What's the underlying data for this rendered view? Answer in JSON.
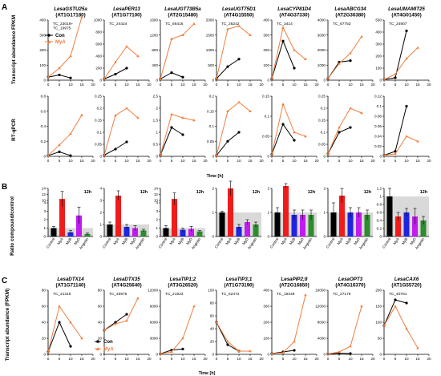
{
  "panel_labels": [
    "A",
    "B",
    "C"
  ],
  "colors": {
    "con": "#000000",
    "mya": "#f07e3e",
    "myb": "#1f24e0",
    "myd": "#c21bf0",
    "angiolin": "#2e8b2e",
    "mya_bar": "#f21b1b",
    "band": "#d9d9d9"
  },
  "axis_titles": {
    "fpkm": "Transcript abundance FPKM",
    "rtqpcr": "RT-qPCR",
    "ratio": "Ratio compound/control",
    "fpkm_c": "Transcript abundance (FPKM)",
    "time": "Time [h]"
  },
  "legend": {
    "con": "Con",
    "mya": "MyA"
  },
  "bar_time_label": "12h",
  "bar_categories": [
    "Control",
    "MyA",
    "MyB",
    "MyD",
    "Angiolin"
  ],
  "chart_data": [
    {
      "type": "line",
      "panel": "A",
      "row": "fpkm",
      "gene": "LesaGSTU25a",
      "agi": "(AT1G17180)",
      "tc": "TC_23016+\nTC_19975",
      "x": [
        0,
        5,
        10,
        15
      ],
      "ylim": [
        0,
        400
      ],
      "yticks": [
        0,
        100,
        200,
        300,
        400
      ],
      "series": [
        {
          "name": "Con",
          "values": [
            20,
            35,
            15,
            null
          ]
        },
        {
          "name": "MyA",
          "values": [
            20,
            80,
            160,
            420
          ]
        }
      ]
    },
    {
      "type": "line",
      "panel": "A",
      "row": "fpkm",
      "gene": "LesaPER13",
      "agi": "(AT1G77100)",
      "tc": "TC_24424",
      "x": [
        0,
        5,
        10,
        15
      ],
      "ylim": [
        0,
        1000
      ],
      "yticks": [
        0,
        200,
        400,
        600,
        800,
        1000
      ],
      "series": [
        {
          "name": "Con",
          "values": [
            20,
            100,
            200,
            null
          ]
        },
        {
          "name": "MyA",
          "values": [
            20,
            300,
            560,
            400
          ]
        }
      ]
    },
    {
      "type": "line",
      "panel": "A",
      "row": "fpkm",
      "gene": "LesaUGT73B5a",
      "agi": "(AT2G15480)",
      "tc": "TC_66416",
      "x": [
        0,
        5,
        10,
        15
      ],
      "ylim": [
        0,
        1600
      ],
      "yticks": [
        0,
        400,
        800,
        1200,
        1600
      ],
      "series": [
        {
          "name": "Con",
          "values": [
            30,
            200,
            80,
            null
          ]
        },
        {
          "name": "MyA",
          "values": [
            30,
            1100,
            1200,
            1500
          ]
        }
      ]
    },
    {
      "type": "line",
      "panel": "A",
      "row": "fpkm",
      "gene": "LesaUGT75D1",
      "agi": "(AT4G15550)",
      "tc": "TC_28242",
      "x": [
        0,
        5,
        10,
        15
      ],
      "ylim": [
        0,
        2000
      ],
      "yticks": [
        0,
        500,
        1000,
        1500,
        2000
      ],
      "series": [
        {
          "name": "Con",
          "values": [
            50,
            450,
            700,
            null
          ]
        },
        {
          "name": "MyA",
          "values": [
            50,
            1700,
            1800,
            1500
          ]
        }
      ]
    },
    {
      "type": "line",
      "panel": "A",
      "row": "fpkm",
      "gene": "LesaCYP81D4",
      "agi": "(AT4G37330)",
      "tc": "TC_3414",
      "x": [
        0,
        5,
        10,
        15
      ],
      "ylim": [
        0,
        400
      ],
      "yticks": [
        0,
        100,
        200,
        300,
        400
      ],
      "series": [
        {
          "name": "Con",
          "values": [
            10,
            260,
            80,
            null
          ]
        },
        {
          "name": "MyA",
          "values": [
            10,
            350,
            200,
            140
          ]
        }
      ]
    },
    {
      "type": "line",
      "panel": "A",
      "row": "fpkm",
      "gene": "LesaABCG34",
      "agi": "(AT2G36380)",
      "tc": "TC_67753",
      "x": [
        0,
        5,
        10,
        15
      ],
      "ylim": [
        0,
        4000
      ],
      "yticks": [
        0,
        1000,
        2000,
        3000,
        4000
      ],
      "series": [
        {
          "name": "Con",
          "values": [
            100,
            1200,
            1300,
            null
          ]
        },
        {
          "name": "MyA",
          "values": [
            100,
            1100,
            1800,
            2900
          ]
        }
      ]
    },
    {
      "type": "line",
      "panel": "A",
      "row": "fpkm",
      "gene": "LesaUMAMIT25",
      "agi": "(AT4G01450)",
      "tc": "TC_24907",
      "x": [
        0,
        5,
        10,
        15
      ],
      "ylim": [
        0,
        500
      ],
      "yticks": [
        0,
        100,
        200,
        300,
        400,
        500
      ],
      "series": [
        {
          "name": "Con",
          "values": [
            5,
            20,
            410,
            null
          ]
        },
        {
          "name": "MyA",
          "values": [
            5,
            50,
            180,
            270
          ]
        }
      ]
    },
    {
      "type": "line",
      "panel": "A",
      "row": "rtqpcr",
      "x": [
        0,
        5,
        10,
        15
      ],
      "ylim": [
        0,
        0.8
      ],
      "yticks": [
        0,
        0.2,
        0.4,
        0.6,
        0.8
      ],
      "series": [
        {
          "name": "Con",
          "values": [
            0.01,
            0.06,
            0.01,
            null
          ]
        },
        {
          "name": "MyA",
          "values": [
            0.01,
            0.15,
            0.3,
            0.55
          ]
        }
      ]
    },
    {
      "type": "line",
      "panel": "A",
      "row": "rtqpcr",
      "x": [
        0,
        5,
        10,
        15
      ],
      "ylim": [
        0,
        0.25
      ],
      "yticks": [
        0,
        0.05,
        0.1,
        0.15,
        0.2,
        0.25
      ],
      "series": [
        {
          "name": "Con",
          "values": [
            0.005,
            0.03,
            0.06,
            null
          ]
        },
        {
          "name": "MyA",
          "values": [
            0.005,
            0.17,
            0.2,
            0.16
          ]
        }
      ]
    },
    {
      "type": "line",
      "panel": "A",
      "row": "rtqpcr",
      "x": [
        0,
        5,
        10,
        15
      ],
      "ylim": [
        0,
        2.5
      ],
      "yticks": [
        0,
        0.5,
        1,
        1.5,
        2,
        2.5
      ],
      "series": [
        {
          "name": "Con",
          "values": [
            0.05,
            1.2,
            0.9,
            null
          ]
        },
        {
          "name": "MyA",
          "values": [
            0.05,
            1.75,
            1.6,
            1.5
          ]
        }
      ]
    },
    {
      "type": "line",
      "panel": "A",
      "row": "rtqpcr",
      "x": [
        0,
        5,
        10,
        15
      ],
      "ylim": [
        0,
        0.2
      ],
      "yticks": [
        0,
        0.05,
        0.1,
        0.15,
        0.2
      ],
      "series": [
        {
          "name": "Con",
          "values": [
            0.003,
            0.05,
            0.08,
            null
          ]
        },
        {
          "name": "MyA",
          "values": [
            0.003,
            0.15,
            0.18,
            0.15
          ]
        }
      ]
    },
    {
      "type": "line",
      "panel": "A",
      "row": "rtqpcr",
      "x": [
        0,
        5,
        10,
        15
      ],
      "ylim": [
        0,
        0.15
      ],
      "yticks": [
        0,
        0.05,
        0.1,
        0.15
      ],
      "series": [
        {
          "name": "Con",
          "values": [
            0.005,
            0.08,
            0.04,
            null
          ]
        },
        {
          "name": "MyA",
          "values": [
            0.005,
            0.13,
            0.06,
            0.05
          ]
        }
      ]
    },
    {
      "type": "line",
      "panel": "A",
      "row": "rtqpcr",
      "x": [
        0,
        5,
        10,
        15
      ],
      "ylim": [
        0,
        0.25
      ],
      "yticks": [
        0,
        0.05,
        0.1,
        0.15,
        0.2,
        0.25
      ],
      "series": [
        {
          "name": "Con",
          "values": [
            0.01,
            0.1,
            0.12,
            null
          ]
        },
        {
          "name": "MyA",
          "values": [
            0.01,
            0.12,
            0.2,
            0.18
          ]
        }
      ]
    },
    {
      "type": "line",
      "panel": "A",
      "row": "rtqpcr",
      "x": [
        0,
        5,
        10,
        15
      ],
      "ylim": [
        0,
        0.12
      ],
      "yticks": [
        0,
        0.02,
        0.04,
        0.06,
        0.08,
        0.1,
        0.12
      ],
      "series": [
        {
          "name": "Con",
          "values": [
            0.002,
            0.01,
            0.1,
            null
          ]
        },
        {
          "name": "MyA",
          "values": [
            0.002,
            0.005,
            0.04,
            0.03
          ]
        }
      ]
    },
    {
      "type": "bar",
      "panel": "B",
      "yscale": "break",
      "yticks": [
        0,
        1,
        2,
        3,
        4,
        10,
        12,
        14
      ],
      "values": [
        1,
        10.5,
        0.5,
        2.5,
        0.3
      ],
      "errors": [
        0.2,
        2.5,
        0.2,
        1.0,
        0.1
      ]
    },
    {
      "type": "bar",
      "panel": "B",
      "ylim": [
        0,
        4
      ],
      "yticks": [
        0,
        1,
        2,
        3,
        4
      ],
      "values": [
        1,
        3.4,
        0.8,
        0.7,
        0.5
      ],
      "errors": [
        0.2,
        0.4,
        0.2,
        0.2,
        0.1
      ]
    },
    {
      "type": "bar",
      "panel": "B",
      "yscale": "break",
      "yticks": [
        0,
        1,
        2,
        3,
        4,
        10,
        12,
        14
      ],
      "values": [
        1,
        10.5,
        0.8,
        0.9,
        0.6
      ],
      "errors": [
        0.3,
        2.0,
        0.2,
        0.3,
        0.1
      ]
    },
    {
      "type": "bar",
      "panel": "B",
      "ylim": [
        0,
        2
      ],
      "yticks": [
        0,
        1,
        2
      ],
      "values": [
        1,
        2,
        0.4,
        0.6,
        0.5
      ],
      "errors": [
        0.05,
        0.3,
        0.1,
        0.1,
        0.1
      ]
    },
    {
      "type": "bar",
      "panel": "B",
      "ylim": [
        0,
        2
      ],
      "yticks": [
        0,
        1,
        2
      ],
      "values": [
        1,
        2.1,
        0.9,
        0.9,
        0.9
      ],
      "errors": [
        0.2,
        0.1,
        0.2,
        0.2,
        0.2
      ]
    },
    {
      "type": "bar",
      "panel": "B",
      "ylim": [
        0,
        2
      ],
      "yticks": [
        0,
        1,
        2
      ],
      "values": [
        1,
        1.7,
        1.0,
        1.0,
        0.9
      ],
      "errors": [
        0.4,
        0.3,
        0.2,
        0.2,
        0.2
      ]
    },
    {
      "type": "bar",
      "panel": "B",
      "ylim": [
        0,
        1.2
      ],
      "yticks": [
        0,
        0.2,
        0.4,
        0.6,
        0.8,
        1,
        1.2
      ],
      "values": [
        1,
        0.5,
        0.6,
        0.5,
        0.4
      ],
      "errors": [
        0.2,
        0.1,
        0.1,
        0.2,
        0.1
      ]
    },
    {
      "type": "line",
      "panel": "C",
      "gene": "LesaDTX14",
      "agi": "(AT1G71140)",
      "tc": "TC_21316",
      "x": [
        0,
        5,
        10,
        15
      ],
      "ylim": [
        0,
        80
      ],
      "yticks": [
        0,
        20,
        40,
        60,
        80
      ],
      "series": [
        {
          "name": "Con",
          "values": [
            3,
            40,
            10,
            null
          ]
        },
        {
          "name": "MyA",
          "values": [
            3,
            60,
            40,
            20
          ]
        }
      ]
    },
    {
      "type": "line",
      "panel": "C",
      "gene": "LesaDTX35",
      "agi": "(AT4G25640)",
      "tc": "TC_45975",
      "x": [
        0,
        5,
        10,
        15
      ],
      "ylim": [
        0,
        80
      ],
      "yticks": [
        0,
        20,
        40,
        60,
        80
      ],
      "series": [
        {
          "name": "Con",
          "values": [
            30,
            40,
            50,
            null
          ]
        },
        {
          "name": "MyA",
          "values": [
            30,
            38,
            42,
            70
          ]
        }
      ]
    },
    {
      "type": "line",
      "panel": "C",
      "gene": "LesaTIP1;2",
      "agi": "(AT3G26520)",
      "tc": "TC_21923",
      "x": [
        0,
        5,
        10,
        15
      ],
      "ylim": [
        0,
        12000
      ],
      "yticks": [
        0,
        3000,
        6000,
        9000,
        12000
      ],
      "series": [
        {
          "name": "Con",
          "values": [
            100,
            800,
            1000,
            null
          ]
        },
        {
          "name": "MyA",
          "values": [
            100,
            500,
            3000,
            9000
          ]
        }
      ]
    },
    {
      "type": "line",
      "panel": "C",
      "gene": "LesaTIP3;1",
      "agi": "(AT1G73190)",
      "tc": "TC_62472",
      "x": [
        0,
        5,
        10,
        15
      ],
      "ylim": [
        0,
        100
      ],
      "yticks": [
        0,
        20,
        40,
        60,
        80,
        100
      ],
      "series": [
        {
          "name": "Con",
          "values": [
            50,
            15,
            5,
            null
          ]
        },
        {
          "name": "MyA",
          "values": [
            50,
            20,
            5,
            5
          ]
        }
      ]
    },
    {
      "type": "line",
      "panel": "C",
      "gene": "LesaPIP2;8",
      "agi": "(AT2G16850)",
      "tc": "TC_18349",
      "x": [
        0,
        5,
        10,
        15
      ],
      "ylim": [
        0,
        400
      ],
      "yticks": [
        0,
        100,
        200,
        300,
        400
      ],
      "series": [
        {
          "name": "Con",
          "values": [
            5,
            15,
            25,
            null
          ]
        },
        {
          "name": "MyA",
          "values": [
            5,
            10,
            80,
            370
          ]
        }
      ]
    },
    {
      "type": "line",
      "panel": "C",
      "gene": "LesaOPT3",
      "agi": "(AT4G16370)",
      "tc": "TC_27176",
      "x": [
        0,
        5,
        10,
        15
      ],
      "ylim": [
        0,
        16000
      ],
      "yticks": [
        0,
        4000,
        8000,
        12000,
        16000
      ],
      "series": [
        {
          "name": "Con",
          "values": [
            100,
            300,
            200,
            null
          ]
        },
        {
          "name": "MyA",
          "values": [
            100,
            600,
            2000,
            12000
          ]
        }
      ]
    },
    {
      "type": "line",
      "panel": "C",
      "gene": "LesaCAX6",
      "agi": "(AT1G55720)",
      "tc": "TC_40761",
      "x": [
        0,
        5,
        10,
        15
      ],
      "ylim": [
        0,
        200
      ],
      "yticks": [
        0,
        50,
        100,
        150,
        200
      ],
      "series": [
        {
          "name": "Con",
          "values": [
            90,
            170,
            160,
            null
          ]
        },
        {
          "name": "MyA",
          "values": [
            90,
            150,
            80,
            20
          ]
        }
      ]
    }
  ]
}
